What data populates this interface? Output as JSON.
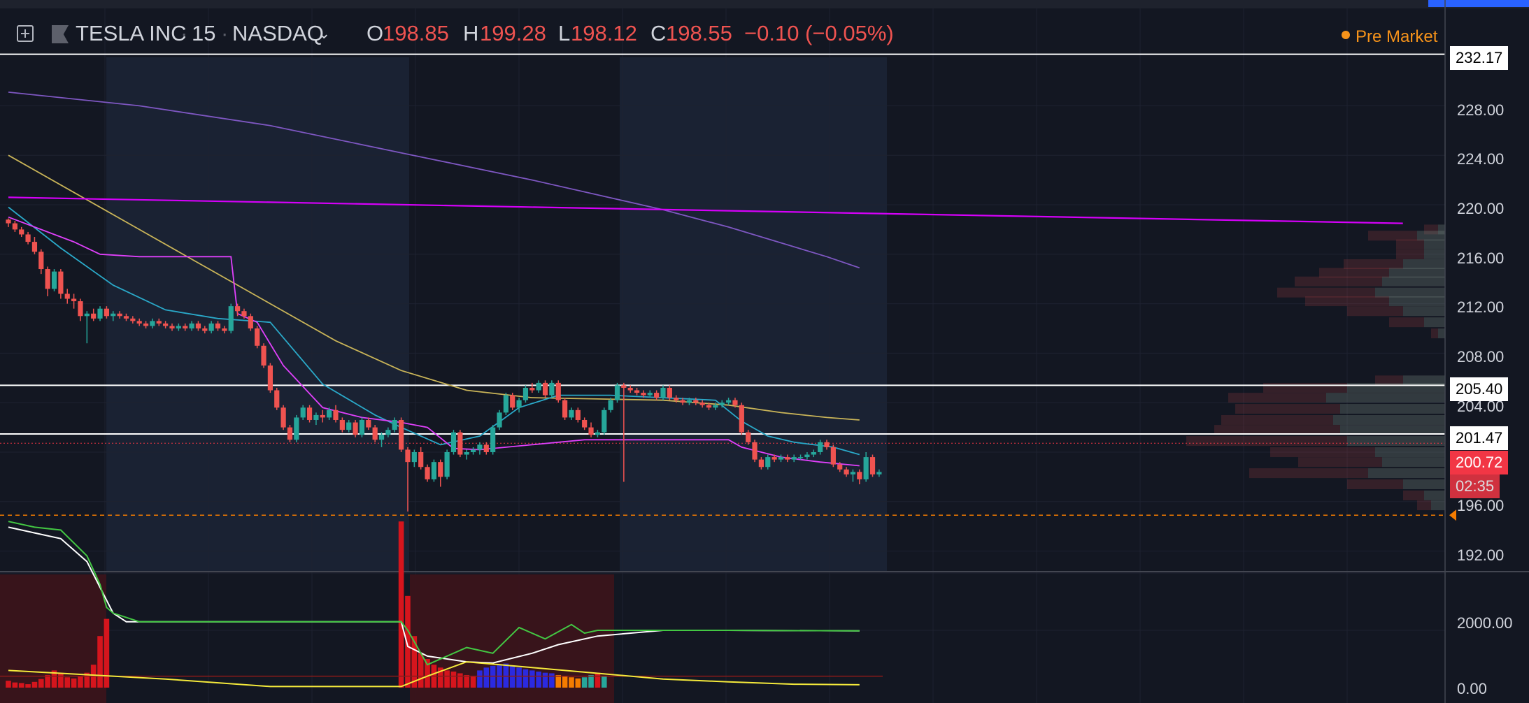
{
  "header": {
    "symbol": "TESLA INC",
    "interval": "15",
    "exchange": "NASDAQ",
    "open_label": "O",
    "open": "198.85",
    "high_label": "H",
    "high": "199.28",
    "low_label": "L",
    "low": "198.12",
    "close_label": "C",
    "close": "198.55",
    "change": "−0.10 (−0.05%)",
    "session": "Pre Market"
  },
  "price_axis": {
    "ticks": [
      "228.00",
      "224.00",
      "220.00",
      "216.00",
      "212.00",
      "208.00",
      "204.00",
      "196.00",
      "192.00"
    ],
    "labels": {
      "top_line": "232.17",
      "resistance": "205.40",
      "support": "201.47",
      "last_price": "200.72",
      "countdown": "02:35"
    }
  },
  "volume_axis": {
    "ticks": [
      "2000.00",
      "0.00"
    ]
  },
  "colors": {
    "background": "#131722",
    "up": "#26a69a",
    "down": "#ef5350",
    "ma_purple": "#7e57c2",
    "ma_yellow": "#c9b458",
    "ma_teal": "#2aa9c9",
    "vwap_magenta": "#e040fb",
    "trendline": "#d500f9",
    "last_price": "#f23645",
    "pre_market": "#f7931a"
  },
  "chart_data": {
    "type": "candlestick",
    "ylim": [
      190.0,
      233.0
    ],
    "horizontal_lines": [
      232.17,
      205.4,
      201.47
    ],
    "last_price": 200.72,
    "dashed_level": 194.9,
    "candles": [
      [
        218.8,
        218.9,
        218.2,
        218.5
      ],
      [
        218.5,
        218.7,
        217.8,
        218.0
      ],
      [
        218.0,
        218.2,
        217.4,
        217.6
      ],
      [
        217.6,
        217.8,
        216.8,
        217.0
      ],
      [
        217.0,
        217.4,
        216.0,
        216.2
      ],
      [
        216.2,
        216.4,
        214.4,
        214.8
      ],
      [
        214.8,
        215.0,
        212.6,
        213.2
      ],
      [
        213.2,
        214.8,
        213.0,
        214.6
      ],
      [
        214.6,
        214.8,
        212.4,
        212.8
      ],
      [
        212.8,
        213.2,
        212.0,
        212.4
      ],
      [
        212.4,
        212.8,
        211.6,
        212.2
      ],
      [
        212.2,
        212.4,
        210.6,
        211.0
      ],
      [
        211.0,
        211.4,
        208.8,
        211.2
      ],
      [
        211.2,
        211.6,
        210.6,
        210.8
      ],
      [
        210.8,
        211.8,
        210.6,
        211.6
      ],
      [
        211.6,
        211.8,
        210.8,
        211.0
      ],
      [
        211.0,
        211.4,
        210.6,
        211.2
      ],
      [
        211.2,
        211.4,
        210.8,
        211.0
      ],
      [
        211.0,
        211.2,
        210.6,
        210.8
      ],
      [
        210.8,
        211.0,
        210.4,
        210.6
      ],
      [
        210.6,
        210.8,
        210.2,
        210.4
      ],
      [
        210.4,
        210.6,
        210.0,
        210.2
      ],
      [
        210.2,
        210.8,
        210.0,
        210.6
      ],
      [
        210.6,
        210.8,
        210.2,
        210.4
      ],
      [
        210.4,
        210.6,
        210.0,
        210.2
      ],
      [
        210.2,
        210.4,
        209.8,
        210.0
      ],
      [
        210.0,
        210.4,
        209.8,
        210.2
      ],
      [
        210.2,
        210.4,
        209.8,
        210.0
      ],
      [
        210.0,
        210.6,
        209.8,
        210.4
      ],
      [
        210.4,
        210.6,
        209.8,
        210.0
      ],
      [
        210.0,
        210.2,
        209.6,
        209.8
      ],
      [
        209.8,
        210.6,
        209.6,
        210.4
      ],
      [
        210.4,
        210.6,
        209.8,
        210.0
      ],
      [
        210.0,
        210.2,
        209.6,
        209.8
      ],
      [
        209.8,
        212.0,
        209.6,
        211.8
      ],
      [
        211.8,
        212.0,
        211.0,
        211.4
      ],
      [
        211.4,
        211.6,
        210.8,
        211.0
      ],
      [
        211.0,
        211.2,
        209.8,
        210.0
      ],
      [
        210.0,
        210.2,
        208.4,
        208.6
      ],
      [
        208.6,
        208.8,
        206.8,
        207.0
      ],
      [
        207.0,
        207.2,
        204.8,
        205.0
      ],
      [
        205.0,
        205.2,
        203.4,
        203.6
      ],
      [
        203.6,
        203.8,
        201.8,
        202.0
      ],
      [
        202.0,
        202.2,
        200.8,
        201.0
      ],
      [
        201.0,
        203.0,
        200.8,
        202.8
      ],
      [
        202.8,
        203.8,
        202.6,
        203.6
      ],
      [
        203.6,
        203.8,
        202.4,
        202.6
      ],
      [
        202.6,
        203.2,
        202.2,
        203.0
      ],
      [
        203.0,
        203.4,
        202.4,
        202.8
      ],
      [
        202.8,
        203.6,
        202.6,
        203.4
      ],
      [
        203.4,
        203.8,
        202.4,
        202.6
      ],
      [
        202.6,
        202.8,
        201.6,
        201.8
      ],
      [
        201.8,
        202.6,
        201.6,
        202.4
      ],
      [
        202.4,
        202.6,
        201.2,
        201.4
      ],
      [
        201.4,
        202.8,
        201.2,
        202.6
      ],
      [
        202.6,
        202.8,
        201.8,
        202.0
      ],
      [
        202.0,
        202.2,
        200.8,
        201.0
      ],
      [
        201.0,
        201.6,
        200.4,
        201.4
      ],
      [
        201.4,
        202.0,
        201.2,
        201.8
      ],
      [
        201.8,
        202.8,
        201.6,
        202.6
      ],
      [
        202.6,
        202.8,
        200.0,
        200.2
      ],
      [
        200.2,
        200.4,
        195.2,
        199.2
      ],
      [
        199.2,
        200.2,
        198.8,
        200.0
      ],
      [
        200.0,
        200.4,
        198.6,
        198.8
      ],
      [
        198.8,
        199.0,
        197.6,
        197.8
      ],
      [
        197.8,
        199.4,
        197.6,
        199.2
      ],
      [
        199.2,
        199.4,
        197.2,
        198.0
      ],
      [
        198.0,
        200.2,
        197.8,
        200.0
      ],
      [
        200.0,
        201.8,
        199.8,
        201.6
      ],
      [
        201.6,
        201.8,
        199.6,
        199.8
      ],
      [
        199.8,
        200.2,
        199.4,
        200.0
      ],
      [
        200.0,
        200.4,
        199.8,
        200.2
      ],
      [
        200.2,
        200.8,
        199.8,
        200.6
      ],
      [
        200.6,
        200.8,
        199.8,
        200.0
      ],
      [
        200.0,
        202.2,
        199.8,
        202.0
      ],
      [
        202.0,
        203.4,
        201.8,
        203.2
      ],
      [
        203.2,
        204.8,
        203.0,
        204.6
      ],
      [
        204.6,
        204.8,
        203.4,
        203.6
      ],
      [
        203.6,
        204.4,
        203.2,
        204.2
      ],
      [
        204.2,
        205.4,
        204.0,
        205.2
      ],
      [
        205.2,
        205.6,
        204.8,
        205.0
      ],
      [
        205.0,
        205.8,
        204.8,
        205.6
      ],
      [
        205.6,
        205.8,
        204.4,
        204.6
      ],
      [
        204.6,
        205.8,
        204.4,
        205.6
      ],
      [
        205.6,
        205.8,
        204.0,
        204.2
      ],
      [
        204.2,
        204.4,
        202.6,
        202.8
      ],
      [
        202.8,
        203.6,
        202.6,
        203.4
      ],
      [
        203.4,
        203.6,
        202.4,
        202.6
      ],
      [
        202.6,
        202.8,
        201.8,
        202.0
      ],
      [
        202.0,
        202.4,
        201.2,
        201.4
      ],
      [
        201.4,
        201.8,
        201.2,
        201.6
      ],
      [
        201.6,
        203.6,
        201.4,
        203.4
      ],
      [
        203.4,
        204.4,
        203.2,
        204.2
      ],
      [
        204.2,
        205.6,
        204.0,
        205.4
      ],
      [
        205.4,
        205.6,
        197.6,
        205.2
      ],
      [
        205.2,
        205.4,
        204.8,
        205.0
      ],
      [
        205.0,
        205.2,
        204.6,
        204.8
      ],
      [
        204.8,
        205.0,
        204.4,
        204.6
      ],
      [
        204.6,
        205.0,
        204.4,
        204.8
      ],
      [
        204.8,
        205.0,
        204.2,
        204.4
      ],
      [
        204.4,
        205.4,
        204.2,
        205.2
      ],
      [
        205.2,
        205.4,
        204.2,
        204.4
      ],
      [
        204.4,
        204.6,
        204.0,
        204.2
      ],
      [
        204.2,
        204.4,
        203.8,
        204.0
      ],
      [
        204.0,
        204.4,
        203.8,
        204.2
      ],
      [
        204.2,
        204.4,
        203.8,
        204.0
      ],
      [
        204.0,
        204.2,
        203.6,
        203.8
      ],
      [
        203.8,
        204.0,
        203.4,
        203.6
      ],
      [
        203.6,
        204.0,
        203.4,
        203.8
      ],
      [
        203.8,
        204.2,
        203.6,
        204.0
      ],
      [
        204.0,
        204.4,
        203.8,
        204.2
      ],
      [
        204.2,
        204.4,
        203.6,
        203.8
      ],
      [
        203.8,
        204.0,
        201.4,
        201.6
      ],
      [
        201.6,
        201.8,
        200.6,
        200.8
      ],
      [
        200.8,
        201.0,
        199.2,
        199.4
      ],
      [
        199.4,
        199.6,
        198.6,
        198.8
      ],
      [
        198.8,
        199.8,
        198.6,
        199.6
      ],
      [
        199.6,
        199.8,
        199.2,
        199.4
      ],
      [
        199.4,
        199.8,
        199.2,
        199.6
      ],
      [
        199.6,
        199.8,
        199.2,
        199.4
      ],
      [
        199.4,
        199.8,
        199.2,
        199.6
      ],
      [
        199.6,
        199.8,
        199.4,
        199.6
      ],
      [
        199.6,
        200.0,
        199.4,
        199.8
      ],
      [
        199.8,
        200.2,
        199.6,
        200.0
      ],
      [
        200.0,
        201.0,
        199.8,
        200.8
      ],
      [
        200.8,
        201.0,
        200.2,
        200.4
      ],
      [
        200.4,
        200.6,
        198.8,
        199.0
      ],
      [
        199.0,
        199.2,
        198.4,
        198.6
      ],
      [
        198.6,
        198.8,
        198.0,
        198.2
      ],
      [
        198.2,
        198.6,
        197.6,
        198.4
      ],
      [
        198.4,
        198.6,
        197.4,
        197.8
      ],
      [
        197.8,
        200.0,
        197.6,
        199.6
      ],
      [
        199.6,
        199.8,
        198.0,
        198.2
      ],
      [
        198.2,
        198.6,
        198.0,
        198.4
      ]
    ],
    "series": [
      {
        "name": "",
        "color": "#7e57c2",
        "x": [
          0,
          20,
          40,
          60,
          80,
          100,
          110,
          125,
          130
        ],
        "y": [
          229.1,
          228.0,
          226.4,
          224.2,
          222.0,
          219.6,
          218.2,
          215.8,
          214.9
        ]
      },
      {
        "name": "",
        "color": "#c9b458",
        "x": [
          0,
          10,
          20,
          30,
          40,
          50,
          60,
          70,
          80,
          90,
          100,
          110,
          118,
          125,
          130
        ],
        "y": [
          224.0,
          221.0,
          218.0,
          215.0,
          212.0,
          209.0,
          206.6,
          205.0,
          204.4,
          204.3,
          204.2,
          203.8,
          203.2,
          202.8,
          202.6
        ]
      },
      {
        "name": "",
        "color": "#2aa9c9",
        "x": [
          0,
          8,
          16,
          24,
          32,
          40,
          48,
          56,
          60,
          66,
          72,
          78,
          84,
          92,
          100,
          108,
          112,
          116,
          120,
          126,
          130
        ],
        "y": [
          219.8,
          216.5,
          213.5,
          211.5,
          210.8,
          210.5,
          205.5,
          203.0,
          202.0,
          200.6,
          201.3,
          203.6,
          204.6,
          204.6,
          204.4,
          204.2,
          202.5,
          201.3,
          200.8,
          200.4,
          199.8
        ]
      },
      {
        "name": "",
        "color": "#e040fb",
        "x": [
          0,
          10,
          14,
          20,
          30,
          34,
          35,
          38,
          42,
          48,
          54,
          60,
          64,
          68,
          72,
          80,
          88,
          100,
          110,
          112,
          118,
          124,
          130
        ],
        "y": [
          219.0,
          217.0,
          216.0,
          215.8,
          215.8,
          215.8,
          211.2,
          210.5,
          207.0,
          203.6,
          202.8,
          202.4,
          202.0,
          200.3,
          200.2,
          200.6,
          201.0,
          201.0,
          201.0,
          200.4,
          199.6,
          199.2,
          198.9
        ]
      },
      {
        "name": "",
        "color": "#d500f9",
        "x": [
          0,
          213
        ],
        "y": [
          220.6,
          218.5
        ]
      }
    ],
    "volume": [
      [
        0,
        120,
        0
      ],
      [
        1,
        90,
        0
      ],
      [
        2,
        80,
        0
      ],
      [
        3,
        60,
        0
      ],
      [
        4,
        100,
        0
      ],
      [
        5,
        150,
        0
      ],
      [
        6,
        220,
        0
      ],
      [
        7,
        300,
        0
      ],
      [
        8,
        250,
        0
      ],
      [
        9,
        180,
        0
      ],
      [
        10,
        160,
        0
      ],
      [
        11,
        200,
        0
      ],
      [
        12,
        260,
        0
      ],
      [
        13,
        400,
        0
      ],
      [
        14,
        900,
        0
      ],
      [
        15,
        1200,
        0
      ],
      [
        60,
        2900,
        0
      ],
      [
        61,
        1600,
        0
      ],
      [
        62,
        900,
        0
      ],
      [
        63,
        600,
        0
      ],
      [
        64,
        500,
        0
      ],
      [
        65,
        400,
        0
      ],
      [
        66,
        350,
        0
      ],
      [
        67,
        300,
        0
      ],
      [
        68,
        280,
        0
      ],
      [
        69,
        250,
        0
      ],
      [
        70,
        220,
        0
      ],
      [
        71,
        200,
        0
      ],
      [
        72,
        300,
        2
      ],
      [
        73,
        350,
        2
      ],
      [
        74,
        380,
        2
      ],
      [
        75,
        400,
        2
      ],
      [
        76,
        420,
        2
      ],
      [
        77,
        380,
        2
      ],
      [
        78,
        350,
        2
      ],
      [
        79,
        320,
        2
      ],
      [
        80,
        300,
        2
      ],
      [
        81,
        280,
        2
      ],
      [
        82,
        260,
        2
      ],
      [
        83,
        250,
        2
      ],
      [
        84,
        220,
        3
      ],
      [
        85,
        200,
        3
      ],
      [
        86,
        180,
        3
      ],
      [
        87,
        160,
        3
      ],
      [
        88,
        180,
        1
      ],
      [
        89,
        220,
        1
      ],
      [
        90,
        260,
        0
      ],
      [
        91,
        200,
        1
      ]
    ],
    "volume_lines": [
      {
        "color": "#ffffff",
        "x": [
          0,
          4,
          8,
          12,
          14,
          16,
          18,
          20,
          40,
          60,
          61,
          64,
          70,
          74,
          80,
          84,
          90,
          100,
          110,
          130
        ],
        "y": [
          2800,
          2700,
          2600,
          2200,
          1750,
          1300,
          1150,
          1150,
          1150,
          1150,
          720,
          550,
          450,
          430,
          600,
          750,
          900,
          1000,
          1000,
          990
        ]
      },
      {
        "color": "#43c743",
        "x": [
          0,
          4,
          8,
          12,
          14,
          15,
          16,
          20,
          40,
          60,
          61,
          64,
          70,
          74,
          78,
          82,
          86,
          88,
          90,
          100,
          110,
          130
        ],
        "y": [
          2900,
          2800,
          2750,
          2300,
          1800,
          1400,
          1300,
          1150,
          1150,
          1150,
          1000,
          400,
          700,
          600,
          1050,
          850,
          1100,
          950,
          1000,
          1000,
          1000,
          990
        ]
      },
      {
        "color": "#f5ea3b",
        "x": [
          0,
          8,
          16,
          24,
          40,
          60,
          64,
          70,
          80,
          90,
          100,
          110,
          120,
          130
        ],
        "y": [
          300,
          250,
          200,
          150,
          20,
          20,
          200,
          450,
          350,
          250,
          150,
          100,
          60,
          50
        ]
      }
    ]
  }
}
